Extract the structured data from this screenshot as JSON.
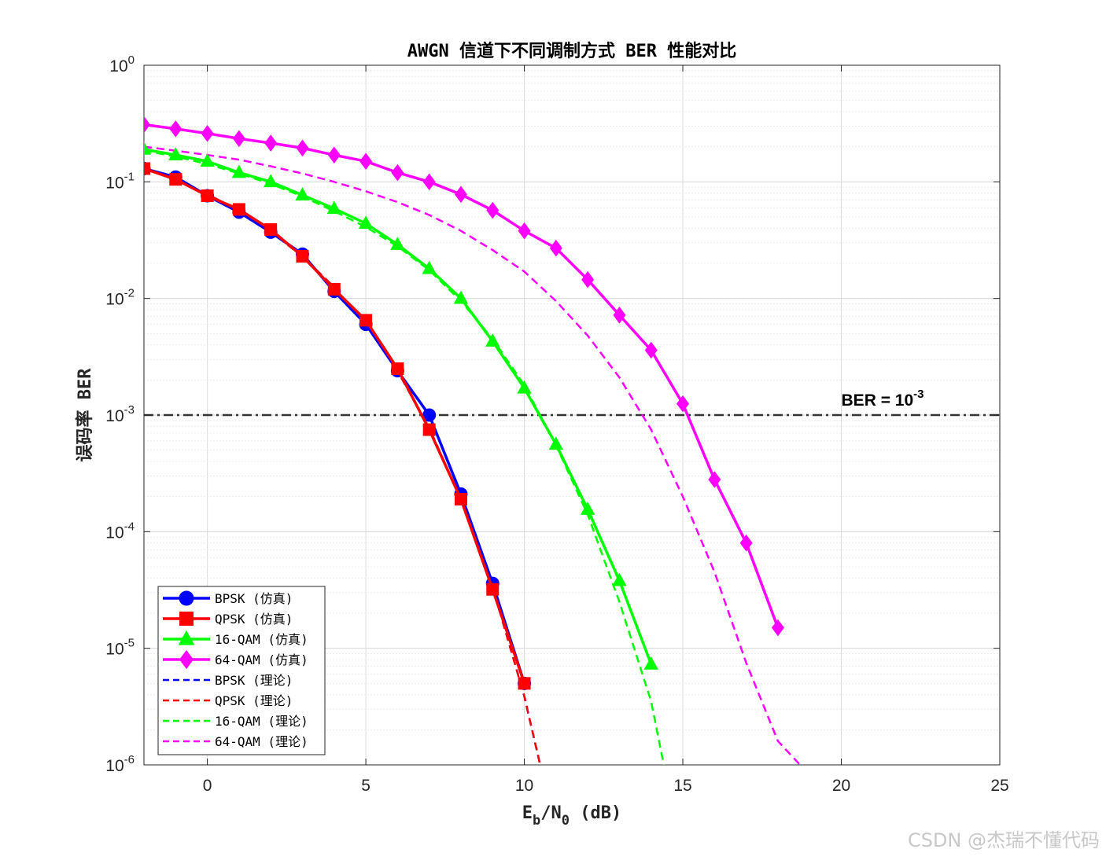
{
  "chart_data": {
    "type": "line",
    "title": "AWGN 信道下不同调制方式 BER 性能对比",
    "xlabel": "E_b/N_0 (dB)",
    "ylabel": "误码率 BER",
    "xlim": [
      -2,
      25
    ],
    "ylim": [
      1e-06,
      1
    ],
    "yscale": "log",
    "grid": true,
    "legend_position": "bottom-left",
    "x_ticks": [
      0,
      5,
      10,
      15,
      20,
      25
    ],
    "y_ticks": [
      {
        "base": "10",
        "exp": "-6"
      },
      {
        "base": "10",
        "exp": "-5"
      },
      {
        "base": "10",
        "exp": "-4"
      },
      {
        "base": "10",
        "exp": "-3"
      },
      {
        "base": "10",
        "exp": "-2"
      },
      {
        "base": "10",
        "exp": "-1"
      },
      {
        "base": "10",
        "exp": "0"
      }
    ],
    "series": [
      {
        "name": "BPSK (仿真)",
        "color": "#0000ff",
        "marker": "circle",
        "style": "solid",
        "x": [
          -2,
          -1,
          0,
          1,
          2,
          3,
          4,
          5,
          6,
          7,
          8,
          9,
          10
        ],
        "y": [
          0.13,
          0.11,
          0.076,
          0.055,
          0.037,
          0.024,
          0.0115,
          0.006,
          0.0024,
          0.001,
          0.00021,
          3.6e-05,
          5e-06
        ]
      },
      {
        "name": "QPSK (仿真)",
        "color": "#ff0000",
        "marker": "square",
        "style": "solid",
        "x": [
          -2,
          -1,
          0,
          1,
          2,
          3,
          4,
          5,
          6,
          7,
          8,
          9,
          10
        ],
        "y": [
          0.13,
          0.105,
          0.076,
          0.058,
          0.039,
          0.023,
          0.012,
          0.0065,
          0.0025,
          0.00075,
          0.00019,
          3.2e-05,
          5e-06
        ]
      },
      {
        "name": "16-QAM (仿真)",
        "color": "#00ff00",
        "marker": "triangle",
        "style": "solid",
        "x": [
          -2,
          -1,
          0,
          1,
          2,
          3,
          4,
          5,
          6,
          7,
          8,
          9,
          10,
          11,
          12,
          13,
          14
        ],
        "y": [
          0.19,
          0.17,
          0.15,
          0.12,
          0.1,
          0.077,
          0.059,
          0.044,
          0.029,
          0.018,
          0.01,
          0.0043,
          0.0017,
          0.00056,
          0.000155,
          3.8e-05,
          7.3e-06
        ]
      },
      {
        "name": "64-QAM (仿真)",
        "color": "#ff00ff",
        "marker": "diamond",
        "style": "solid",
        "x": [
          -2,
          -1,
          0,
          1,
          2,
          3,
          4,
          5,
          6,
          7,
          8,
          9,
          10,
          11,
          12,
          13,
          14,
          15,
          16,
          17,
          18
        ],
        "y": [
          0.31,
          0.285,
          0.26,
          0.235,
          0.215,
          0.195,
          0.17,
          0.15,
          0.12,
          0.1,
          0.078,
          0.057,
          0.038,
          0.027,
          0.0145,
          0.0072,
          0.0036,
          0.00125,
          0.00028,
          8e-05,
          1.5e-05
        ]
      },
      {
        "name": "BPSK (理论)",
        "color": "#0000ff",
        "marker": "none",
        "style": "dashed",
        "x": [
          -2,
          -1,
          0,
          1,
          2,
          3,
          4,
          5,
          6,
          7,
          8,
          9,
          10,
          10.5
        ],
        "y": [
          0.1306,
          0.104,
          0.0786,
          0.0563,
          0.0375,
          0.0229,
          0.0125,
          0.00595,
          0.00239,
          0.000773,
          0.000191,
          3.36e-05,
          3.87e-06,
          1e-06
        ]
      },
      {
        "name": "QPSK (理论)",
        "color": "#ff0000",
        "marker": "none",
        "style": "dashed",
        "x": [
          -2,
          -1,
          0,
          1,
          2,
          3,
          4,
          5,
          6,
          7,
          8,
          9,
          10,
          10.5
        ],
        "y": [
          0.1306,
          0.104,
          0.0786,
          0.0563,
          0.0375,
          0.0229,
          0.0125,
          0.00595,
          0.00239,
          0.000773,
          0.000191,
          3.36e-05,
          3.87e-06,
          1e-06
        ]
      },
      {
        "name": "16-QAM (理论)",
        "color": "#00ff00",
        "marker": "none",
        "style": "dashed",
        "x": [
          -2,
          -1,
          0,
          1,
          2,
          3,
          4,
          5,
          6,
          7,
          8,
          9,
          10,
          11,
          12,
          13,
          14,
          14.4
        ],
        "y": [
          0.185,
          0.165,
          0.142,
          0.118,
          0.096,
          0.075,
          0.056,
          0.041,
          0.028,
          0.0175,
          0.0095,
          0.0045,
          0.0018,
          0.00055,
          0.00014,
          2.5e-05,
          3.5e-06,
          1e-06
        ]
      },
      {
        "name": "64-QAM (理论)",
        "color": "#ff00ff",
        "marker": "none",
        "style": "dashed",
        "x": [
          -2,
          -1,
          0,
          1,
          2,
          3,
          4,
          5,
          6,
          7,
          8,
          9,
          10,
          11,
          12,
          13,
          14,
          15,
          16,
          17,
          18,
          18.7
        ],
        "y": [
          0.2,
          0.185,
          0.17,
          0.155,
          0.136,
          0.118,
          0.1,
          0.083,
          0.067,
          0.052,
          0.038,
          0.026,
          0.017,
          0.0095,
          0.0048,
          0.0021,
          0.00075,
          0.0002,
          4.5e-05,
          7.5e-06,
          1.6e-06,
          1e-06
        ]
      }
    ],
    "reference_line": {
      "y": 0.001,
      "color": "#333333",
      "style": "dash-dot",
      "label_prefix": "BER = 10",
      "label_exp": "-3"
    }
  },
  "watermark": "CSDN @杰瑞不懂代码"
}
